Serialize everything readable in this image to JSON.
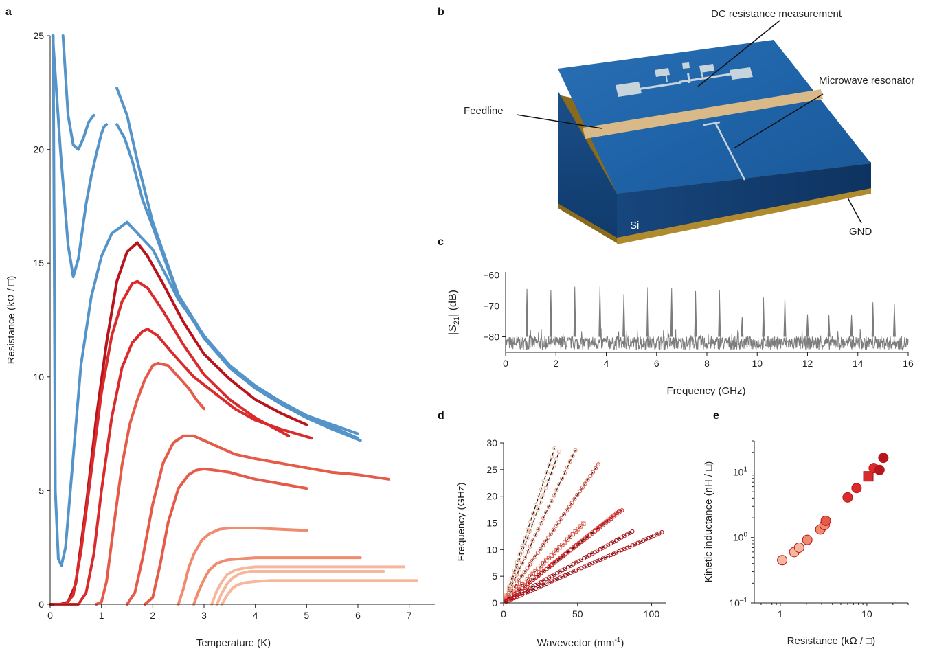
{
  "figure": {
    "panels": {
      "a": "a",
      "b": "b",
      "c": "c",
      "d": "d",
      "e": "e"
    }
  },
  "colors": {
    "blue": "#5594c8",
    "dark_red": "#b8141c",
    "red": "#d92b2b",
    "mid_red": "#e65a48",
    "salmon": "#ef8b6f",
    "light_salmon": "#f6b79c",
    "spectrum_gray": "#7c7c7c"
  },
  "schematic": {
    "labels": {
      "dc": "DC resistance measurement",
      "feedline": "Feedline",
      "resonator": "Microwave resonator",
      "si": "Si",
      "gnd": "GND"
    },
    "colors": {
      "substrate_top": "#1f63a8",
      "substrate_side": "#123f72",
      "feedline": "#d9b987",
      "ground": "#8a6a1c",
      "pattern": "#c8d4dc"
    }
  },
  "chart_data": [
    {
      "panel": "a",
      "type": "line",
      "xlabel": "Temperature (K)",
      "ylabel": "Resistance (kΩ / □)",
      "xlim": [
        0,
        7.5
      ],
      "ylim": [
        0,
        25
      ],
      "xticks": [
        0,
        1,
        2,
        3,
        4,
        5,
        6,
        7
      ],
      "yticks": [
        0,
        5,
        10,
        15,
        20,
        25
      ],
      "series": [
        {
          "color": "blue",
          "x": [
            0.06,
            0.1,
            0.16,
            0.22,
            0.3,
            0.45,
            0.6,
            0.8,
            1.0,
            1.2,
            1.5,
            2.0,
            2.5,
            3.0,
            3.5,
            4.0,
            4.5,
            5.0,
            5.5,
            6.0
          ],
          "y": [
            25,
            5.0,
            2.0,
            1.7,
            2.5,
            6.5,
            10.5,
            13.5,
            15.3,
            16.3,
            16.8,
            15.6,
            13.4,
            11.8,
            10.5,
            9.6,
            8.9,
            8.3,
            7.8,
            7.3
          ]
        },
        {
          "color": "blue",
          "x": [
            0.05,
            0.2,
            0.35,
            0.45,
            0.55,
            0.7,
            0.8,
            0.9,
            1.0,
            1.05,
            1.1
          ],
          "y": [
            25,
            20,
            15.8,
            14.4,
            15.2,
            17.6,
            18.8,
            19.8,
            20.7,
            21.0,
            21.1
          ]
        },
        {
          "color": "blue",
          "x": [
            0.25,
            0.35,
            0.45,
            0.55,
            0.65,
            0.75,
            0.85
          ],
          "y": [
            25,
            21.5,
            20.2,
            20.0,
            20.5,
            21.2,
            21.5
          ]
        },
        {
          "color": "blue",
          "x": [
            1.3,
            1.5,
            1.7,
            2.0,
            2.5,
            3.0,
            3.5,
            4.0,
            4.5,
            5.0,
            5.5,
            6.0
          ],
          "y": [
            22.7,
            21.5,
            19.5,
            16.8,
            13.6,
            11.8,
            10.5,
            9.6,
            8.9,
            8.3,
            7.9,
            7.5
          ]
        },
        {
          "color": "blue",
          "x": [
            1.3,
            1.45,
            1.6,
            1.8,
            2.0,
            2.5,
            3.0,
            3.5,
            4.0,
            4.5,
            5.0,
            5.5,
            6.05
          ],
          "y": [
            21.1,
            20.5,
            19.5,
            17.8,
            16.6,
            13.5,
            11.7,
            10.4,
            9.5,
            8.8,
            8.2,
            7.7,
            7.2
          ]
        },
        {
          "color": "dark_red",
          "x": [
            0.0,
            0.2,
            0.35,
            0.5,
            0.7,
            0.9,
            1.1,
            1.3,
            1.5,
            1.7,
            1.9,
            2.2,
            2.6,
            3.0,
            3.5,
            4.0,
            4.5,
            5.0
          ],
          "y": [
            0,
            0,
            0.1,
            0.9,
            4.3,
            8.2,
            11.5,
            14.2,
            15.5,
            15.9,
            15.3,
            14.1,
            12.4,
            11.0,
            9.9,
            9.0,
            8.4,
            7.9
          ]
        },
        {
          "color": "red",
          "x": [
            0.1,
            0.3,
            0.45,
            0.6,
            0.8,
            1.0,
            1.2,
            1.4,
            1.6,
            1.7,
            1.9,
            2.2,
            2.6,
            3.0,
            3.5,
            4.0,
            4.65
          ],
          "y": [
            0,
            0,
            0.4,
            2.3,
            5.8,
            9.3,
            11.8,
            13.3,
            14.1,
            14.2,
            13.9,
            12.9,
            11.4,
            10.1,
            9.0,
            8.2,
            7.4
          ]
        },
        {
          "color": "red",
          "x": [
            0.3,
            0.55,
            0.7,
            0.85,
            1.0,
            1.2,
            1.4,
            1.6,
            1.8,
            1.9,
            2.1,
            2.4,
            2.8,
            3.2,
            3.6,
            4.0,
            4.5,
            5.1
          ],
          "y": [
            0,
            0,
            0.5,
            2.2,
            5.0,
            8.2,
            10.4,
            11.5,
            12.0,
            12.1,
            11.8,
            11.0,
            10.0,
            9.3,
            8.6,
            8.1,
            7.7,
            7.3
          ]
        },
        {
          "color": "mid_red",
          "x": [
            0.9,
            1.0,
            1.1,
            1.25,
            1.4,
            1.55,
            1.7,
            1.85,
            2.0,
            2.1,
            2.3,
            2.5,
            2.7,
            2.85,
            3.0
          ],
          "y": [
            0,
            0.1,
            1.0,
            3.6,
            6.1,
            7.9,
            9.0,
            9.9,
            10.5,
            10.6,
            10.5,
            10.0,
            9.5,
            9.0,
            8.6
          ]
        },
        {
          "color": "mid_red",
          "x": [
            1.5,
            1.65,
            1.8,
            2.0,
            2.2,
            2.4,
            2.6,
            2.8,
            3.0,
            3.3,
            3.6,
            4.0,
            4.5,
            5.0,
            5.5,
            6.0,
            6.6
          ],
          "y": [
            0,
            0.5,
            2.0,
            4.4,
            6.2,
            7.1,
            7.4,
            7.4,
            7.2,
            6.9,
            6.6,
            6.4,
            6.2,
            6.0,
            5.8,
            5.7,
            5.5
          ]
        },
        {
          "color": "mid_red",
          "x": [
            1.85,
            2.0,
            2.15,
            2.3,
            2.5,
            2.7,
            2.85,
            3.0,
            3.2,
            3.5,
            4.0,
            4.5,
            5.0
          ],
          "y": [
            0,
            0.3,
            1.8,
            3.6,
            5.1,
            5.7,
            5.9,
            5.95,
            5.9,
            5.8,
            5.5,
            5.3,
            5.1
          ]
        },
        {
          "color": "salmon",
          "x": [
            2.5,
            2.6,
            2.7,
            2.8,
            2.95,
            3.1,
            3.3,
            3.5,
            3.7,
            4.0,
            4.5,
            5.0
          ],
          "y": [
            0,
            0.7,
            1.6,
            2.2,
            2.8,
            3.1,
            3.3,
            3.35,
            3.35,
            3.35,
            3.3,
            3.25
          ]
        },
        {
          "color": "salmon",
          "x": [
            2.8,
            2.9,
            3.0,
            3.1,
            3.25,
            3.45,
            3.7,
            4.0,
            4.5,
            5.0,
            5.5,
            6.05
          ],
          "y": [
            0,
            0.6,
            1.1,
            1.5,
            1.8,
            1.95,
            2.0,
            2.05,
            2.05,
            2.05,
            2.05,
            2.05
          ]
        },
        {
          "color": "light_salmon",
          "x": [
            3.15,
            3.25,
            3.35,
            3.45,
            3.6,
            3.8,
            4.0,
            4.5,
            5.0,
            5.5,
            6.0,
            6.5,
            6.9
          ],
          "y": [
            0,
            0.6,
            1.0,
            1.3,
            1.5,
            1.6,
            1.65,
            1.65,
            1.65,
            1.65,
            1.65,
            1.65,
            1.65
          ]
        },
        {
          "color": "light_salmon",
          "x": [
            3.25,
            3.35,
            3.45,
            3.55,
            3.7,
            3.9,
            4.2,
            4.5,
            5.0,
            5.5,
            6.0,
            6.5
          ],
          "y": [
            0,
            0.5,
            0.9,
            1.15,
            1.35,
            1.45,
            1.45,
            1.45,
            1.45,
            1.45,
            1.45,
            1.45
          ]
        },
        {
          "color": "light_salmon",
          "x": [
            3.35,
            3.45,
            3.55,
            3.65,
            3.8,
            4.0,
            4.3,
            4.6,
            5.0,
            5.5,
            6.0,
            6.5,
            7.15
          ],
          "y": [
            0,
            0.4,
            0.7,
            0.85,
            0.95,
            1.0,
            1.05,
            1.05,
            1.05,
            1.05,
            1.05,
            1.05,
            1.05
          ]
        }
      ]
    },
    {
      "panel": "c",
      "type": "line",
      "xlabel": "Frequency (GHz)",
      "ylabel": "|S21| (dB)",
      "ylabel_parts": {
        "pre": "|",
        "sym": "S",
        "sub": "21",
        "post": "| (dB)"
      },
      "xlim": [
        0,
        16
      ],
      "ylim": [
        -85,
        -59
      ],
      "xticks": [
        0,
        2,
        4,
        6,
        8,
        10,
        12,
        14,
        16
      ],
      "yticks": [
        -60,
        -70,
        -80
      ],
      "baseline_db": -82,
      "noise_db": 2.2,
      "peaks": [
        {
          "f": 0.85,
          "db": -64.5
        },
        {
          "f": 1.8,
          "db": -64.8
        },
        {
          "f": 2.75,
          "db": -63.8
        },
        {
          "f": 3.75,
          "db": -63.7
        },
        {
          "f": 4.7,
          "db": -66.2
        },
        {
          "f": 5.65,
          "db": -64.0
        },
        {
          "f": 6.6,
          "db": -64.3
        },
        {
          "f": 7.55,
          "db": -65.2
        },
        {
          "f": 8.5,
          "db": -64.8
        },
        {
          "f": 9.4,
          "db": -73.5
        },
        {
          "f": 10.25,
          "db": -67.3
        },
        {
          "f": 11.1,
          "db": -67.5
        },
        {
          "f": 12.0,
          "db": -72.7
        },
        {
          "f": 12.85,
          "db": -73.0
        },
        {
          "f": 13.75,
          "db": -72.9
        },
        {
          "f": 14.6,
          "db": -68.8
        },
        {
          "f": 15.45,
          "db": -69.3
        }
      ]
    },
    {
      "panel": "d",
      "type": "scatter",
      "xlabel": "Wavevector (mm⁻¹)",
      "xlabel_parts": {
        "pre": "Wavevector (mm",
        "sup": "-1",
        "post": ")"
      },
      "ylabel": "Frequency (GHz)",
      "xlim": [
        0,
        110
      ],
      "ylim": [
        0,
        30
      ],
      "xticks": [
        0,
        50,
        100
      ],
      "yticks": [
        0,
        5,
        10,
        15,
        20,
        25,
        30
      ],
      "series": [
        {
          "color": "light_salmon",
          "slope": 0.84,
          "xmax": 34.5
        },
        {
          "color": "light_salmon",
          "slope": 0.755,
          "xmax": 37.5
        },
        {
          "color": "salmon",
          "slope": 0.59,
          "xmax": 48.5
        },
        {
          "color": "mid_red",
          "slope": 0.406,
          "xmax": 64
        },
        {
          "color": "mid_red",
          "slope": 0.275,
          "xmax": 54,
          "marker": "square"
        },
        {
          "color": "red",
          "slope": 0.217,
          "xmax": 80
        },
        {
          "color": "red",
          "slope": 0.221,
          "xmax": 78
        },
        {
          "color": "dark_red",
          "slope": 0.154,
          "xmax": 87
        },
        {
          "color": "dark_red",
          "slope": 0.124,
          "xmax": 107
        }
      ]
    },
    {
      "panel": "e",
      "type": "scatter",
      "xlabel": "Resistance (kΩ / □)",
      "ylabel": "Kinetic inductance  (nH / □)",
      "xscale": "log",
      "yscale": "log",
      "xlim": [
        0.5,
        30
      ],
      "ylim": [
        0.1,
        30
      ],
      "xticks": [
        {
          "v": 1,
          "label": "1"
        },
        {
          "v": 10,
          "label": "10"
        }
      ],
      "yticks": [
        {
          "v": 0.1,
          "base": "10",
          "exp": "–1"
        },
        {
          "v": 1,
          "base": "10",
          "exp": "0"
        },
        {
          "v": 10,
          "base": "10",
          "exp": "1"
        }
      ],
      "points": [
        {
          "x": 1.05,
          "y": 0.45,
          "color": "light_salmon"
        },
        {
          "x": 1.45,
          "y": 0.6,
          "color": "light_salmon"
        },
        {
          "x": 1.65,
          "y": 0.7,
          "color": "light_salmon"
        },
        {
          "x": 2.05,
          "y": 0.92,
          "color": "salmon"
        },
        {
          "x": 2.9,
          "y": 1.33,
          "color": "salmon"
        },
        {
          "x": 3.25,
          "y": 1.55,
          "color": "salmon"
        },
        {
          "x": 3.35,
          "y": 1.8,
          "color": "mid_red"
        },
        {
          "x": 6.0,
          "y": 4.1,
          "color": "red"
        },
        {
          "x": 7.6,
          "y": 5.7,
          "color": "red"
        },
        {
          "x": 10.4,
          "y": 8.6,
          "color": "red",
          "marker": "square"
        },
        {
          "x": 12.0,
          "y": 11.5,
          "color": "red"
        },
        {
          "x": 14.0,
          "y": 10.8,
          "color": "dark_red"
        },
        {
          "x": 15.5,
          "y": 16.5,
          "color": "dark_red"
        }
      ]
    }
  ]
}
